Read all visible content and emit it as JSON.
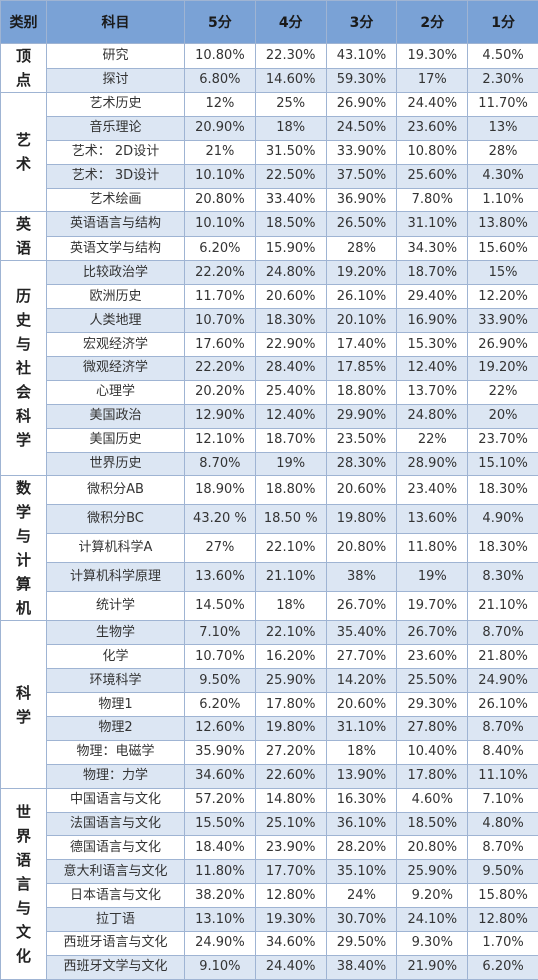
{
  "headers": [
    "类别",
    "科目",
    "5分",
    "4分",
    "3分",
    "2分",
    "1分"
  ],
  "groups": [
    {
      "category": "顶点",
      "rows": [
        {
          "subject": "研究",
          "values": [
            "10.80%",
            "22.30%",
            "43.10%",
            "19.30%",
            "4.50%"
          ]
        },
        {
          "subject": "探讨",
          "values": [
            "6.80%",
            "14.60%",
            "59.30%",
            "17%",
            "2.30%"
          ]
        }
      ]
    },
    {
      "category": "艺术",
      "rows": [
        {
          "subject": "艺术历史",
          "values": [
            "12%",
            "25%",
            "26.90%",
            "24.40%",
            "11.70%"
          ]
        },
        {
          "subject": "音乐理论",
          "values": [
            "20.90%",
            "18%",
            "24.50%",
            "23.60%",
            "13%"
          ]
        },
        {
          "subject": "艺术： 2D设计",
          "values": [
            "21%",
            "31.50%",
            "33.90%",
            "10.80%",
            "28%"
          ]
        },
        {
          "subject": "艺术： 3D设计",
          "values": [
            "10.10%",
            "22.50%",
            "37.50%",
            "25.60%",
            "4.30%"
          ]
        },
        {
          "subject": "艺术绘画",
          "values": [
            "20.80%",
            "33.40%",
            "36.90%",
            "7.80%",
            "1.10%"
          ]
        }
      ]
    },
    {
      "category": "英语",
      "rows": [
        {
          "subject": "英语语言与结构",
          "values": [
            "10.10%",
            "18.50%",
            "26.50%",
            "31.10%",
            "13.80%"
          ]
        },
        {
          "subject": "英语文学与结构",
          "values": [
            "6.20%",
            "15.90%",
            "28%",
            "34.30%",
            "15.60%"
          ]
        }
      ]
    },
    {
      "category": "历史与社会科学",
      "rows": [
        {
          "subject": "比较政治学",
          "values": [
            "22.20%",
            "24.80%",
            "19.20%",
            "18.70%",
            "15%"
          ]
        },
        {
          "subject": "欧洲历史",
          "values": [
            "11.70%",
            "20.60%",
            "26.10%",
            "29.40%",
            "12.20%"
          ]
        },
        {
          "subject": "人类地理",
          "values": [
            "10.70%",
            "18.30%",
            "20.10%",
            "16.90%",
            "33.90%"
          ]
        },
        {
          "subject": "宏观经济学",
          "values": [
            "17.60%",
            "22.90%",
            "17.40%",
            "15.30%",
            "26.90%"
          ]
        },
        {
          "subject": "微观经济学",
          "values": [
            "22.20%",
            "28.40%",
            "17.85%",
            "12.40%",
            "19.20%"
          ]
        },
        {
          "subject": "心理学",
          "values": [
            "20.20%",
            "25.40%",
            "18.80%",
            "13.70%",
            "22%"
          ]
        },
        {
          "subject": "美国政治",
          "values": [
            "12.90%",
            "12.40%",
            "29.90%",
            "24.80%",
            "20%"
          ]
        },
        {
          "subject": "美国历史",
          "values": [
            "12.10%",
            "18.70%",
            "23.50%",
            "22%",
            "23.70%"
          ]
        },
        {
          "subject": "世界历史",
          "values": [
            "8.70%",
            "19%",
            "28.30%",
            "28.90%",
            "15.10%"
          ]
        }
      ]
    },
    {
      "category": "数学与计算机",
      "rows": [
        {
          "subject": "微积分AB",
          "values": [
            "18.90%",
            "18.80%",
            "20.60%",
            "23.40%",
            "18.30%"
          ]
        },
        {
          "subject": "微积分BC",
          "values": [
            "43.20 %",
            "18.50 %",
            "19.80%",
            "13.60%",
            "4.90%"
          ]
        },
        {
          "subject": "计算机科学A",
          "values": [
            "27%",
            "22.10%",
            "20.80%",
            "11.80%",
            "18.30%"
          ]
        },
        {
          "subject": "计算机科学原理",
          "values": [
            "13.60%",
            "21.10%",
            "38%",
            "19%",
            "8.30%"
          ]
        },
        {
          "subject": "统计学",
          "values": [
            "14.50%",
            "18%",
            "26.70%",
            "19.70%",
            "21.10%"
          ]
        }
      ]
    },
    {
      "category": "科学",
      "rows": [
        {
          "subject": "生物学",
          "values": [
            "7.10%",
            "22.10%",
            "35.40%",
            "26.70%",
            "8.70%"
          ]
        },
        {
          "subject": "化学",
          "values": [
            "10.70%",
            "16.20%",
            "27.70%",
            "23.60%",
            "21.80%"
          ]
        },
        {
          "subject": "环境科学",
          "values": [
            "9.50%",
            "25.90%",
            "14.20%",
            "25.50%",
            "24.90%"
          ]
        },
        {
          "subject": "物理1",
          "values": [
            "6.20%",
            "17.80%",
            "20.60%",
            "29.30%",
            "26.10%"
          ]
        },
        {
          "subject": "物理2",
          "values": [
            "12.60%",
            "19.80%",
            "31.10%",
            "27.80%",
            "8.70%"
          ]
        },
        {
          "subject": "物理：电磁学",
          "values": [
            "35.90%",
            "27.20%",
            "18%",
            "10.40%",
            "8.40%"
          ]
        },
        {
          "subject": "物理：力学",
          "values": [
            "34.60%",
            "22.60%",
            "13.90%",
            "17.80%",
            "11.10%"
          ]
        }
      ]
    },
    {
      "category": "世界语言与文化",
      "rows": [
        {
          "subject": "中国语言与文化",
          "values": [
            "57.20%",
            "14.80%",
            "16.30%",
            "4.60%",
            "7.10%"
          ]
        },
        {
          "subject": "法国语言与文化",
          "values": [
            "15.50%",
            "25.10%",
            "36.10%",
            "18.50%",
            "4.80%"
          ]
        },
        {
          "subject": "德国语言与文化",
          "values": [
            "18.40%",
            "23.90%",
            "28.20%",
            "20.80%",
            "8.70%"
          ]
        },
        {
          "subject": "意大利语言与文化",
          "values": [
            "11.80%",
            "17.70%",
            "35.10%",
            "25.90%",
            "9.50%"
          ]
        },
        {
          "subject": "日本语言与文化",
          "values": [
            "38.20%",
            "12.80%",
            "24%",
            "9.20%",
            "15.80%"
          ]
        },
        {
          "subject": "拉丁语",
          "values": [
            "13.10%",
            "19.30%",
            "30.70%",
            "24.10%",
            "12.80%"
          ]
        },
        {
          "subject": "西班牙语言与文化",
          "values": [
            "24.90%",
            "34.60%",
            "29.50%",
            "9.30%",
            "1.70%"
          ]
        },
        {
          "subject": "西班牙文学与文化",
          "values": [
            "9.10%",
            "24.40%",
            "38.40%",
            "21.90%",
            "6.20%"
          ]
        }
      ]
    }
  ]
}
